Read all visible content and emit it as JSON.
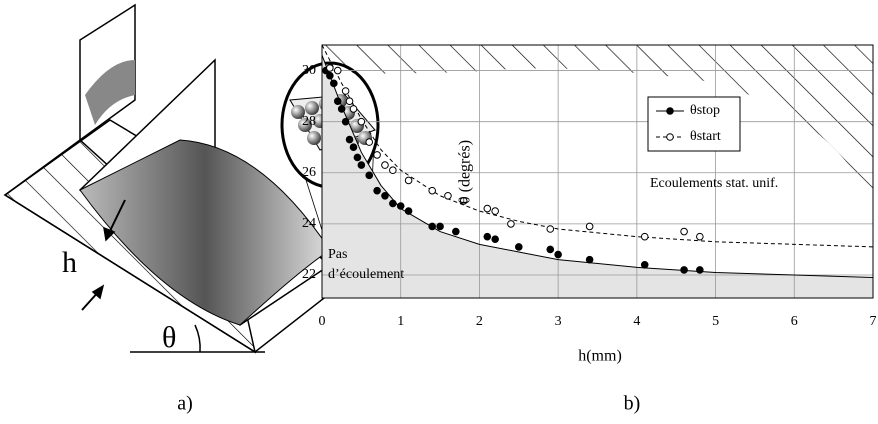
{
  "diagram": {
    "labels": [
      "h",
      "θ"
    ],
    "caption": "a)"
  },
  "chart_data": {
    "type": "scatter",
    "caption": "b)",
    "x_label": "h(mm)",
    "y_label": "θ (degrés)",
    "xlim": [
      0,
      7
    ],
    "xticks": [
      0,
      1,
      2,
      3,
      4,
      5,
      6,
      7
    ],
    "ylim": [
      21.1,
      31
    ],
    "yticks": [
      22,
      24,
      26,
      28,
      30
    ],
    "grid": true,
    "legend": "top-center",
    "annotations": [
      "Ecoulements stat. unif.",
      "Pas",
      "d’écoulement"
    ],
    "series": [
      {
        "name": "θstop",
        "color": "#000",
        "marker": "filled",
        "x": [
          0.05,
          0.1,
          0.15,
          0.2,
          0.25,
          0.3,
          0.35,
          0.4,
          0.45,
          0.5,
          0.6,
          0.7,
          0.8,
          0.9,
          1.0,
          1.1,
          1.4,
          1.5,
          1.7,
          2.1,
          2.2,
          2.5,
          2.9,
          3.0,
          3.4,
          4.1,
          4.6,
          4.8
        ],
        "values": [
          30,
          29.8,
          29.5,
          28.8,
          28.5,
          28,
          27.3,
          27,
          26.6,
          26.3,
          25.9,
          25.3,
          25.1,
          24.8,
          24.7,
          24.5,
          23.9,
          23.9,
          23.7,
          23.5,
          23.4,
          23.1,
          23.0,
          22.8,
          22.6,
          22.4,
          22.2,
          22.2
        ],
        "fit": {
          "x": [
            0,
            0.25,
            0.5,
            0.75,
            1,
            1.5,
            2,
            2.5,
            3,
            4,
            5,
            6,
            7
          ],
          "values": [
            30.6,
            28.6,
            26.8,
            25.5,
            24.6,
            23.7,
            23.2,
            22.9,
            22.6,
            22.3,
            22.1,
            22.0,
            21.9
          ]
        }
      },
      {
        "name": "θstart",
        "color": "#000",
        "marker": "open",
        "x": [
          0.1,
          0.2,
          0.3,
          0.35,
          0.4,
          0.5,
          0.6,
          0.7,
          0.8,
          0.9,
          1.1,
          1.4,
          1.6,
          1.8,
          2.1,
          2.2,
          2.4,
          2.9,
          3.4,
          4.1,
          4.6,
          4.8
        ],
        "values": [
          30.1,
          30,
          29.2,
          28.8,
          28.5,
          28,
          27.2,
          26.7,
          26.3,
          26.1,
          25.7,
          25.3,
          25.1,
          24.9,
          24.6,
          24.5,
          24.0,
          23.8,
          23.9,
          23.5,
          23.7,
          23.5
        ],
        "fit": {
          "x": [
            0,
            0.25,
            0.5,
            0.75,
            1,
            1.5,
            2,
            2.5,
            3,
            4,
            5,
            6,
            7
          ],
          "values": [
            31,
            29.5,
            28.1,
            26.9,
            26.1,
            25.1,
            24.5,
            24.1,
            23.8,
            23.5,
            23.3,
            23.2,
            23.1
          ]
        }
      }
    ]
  }
}
